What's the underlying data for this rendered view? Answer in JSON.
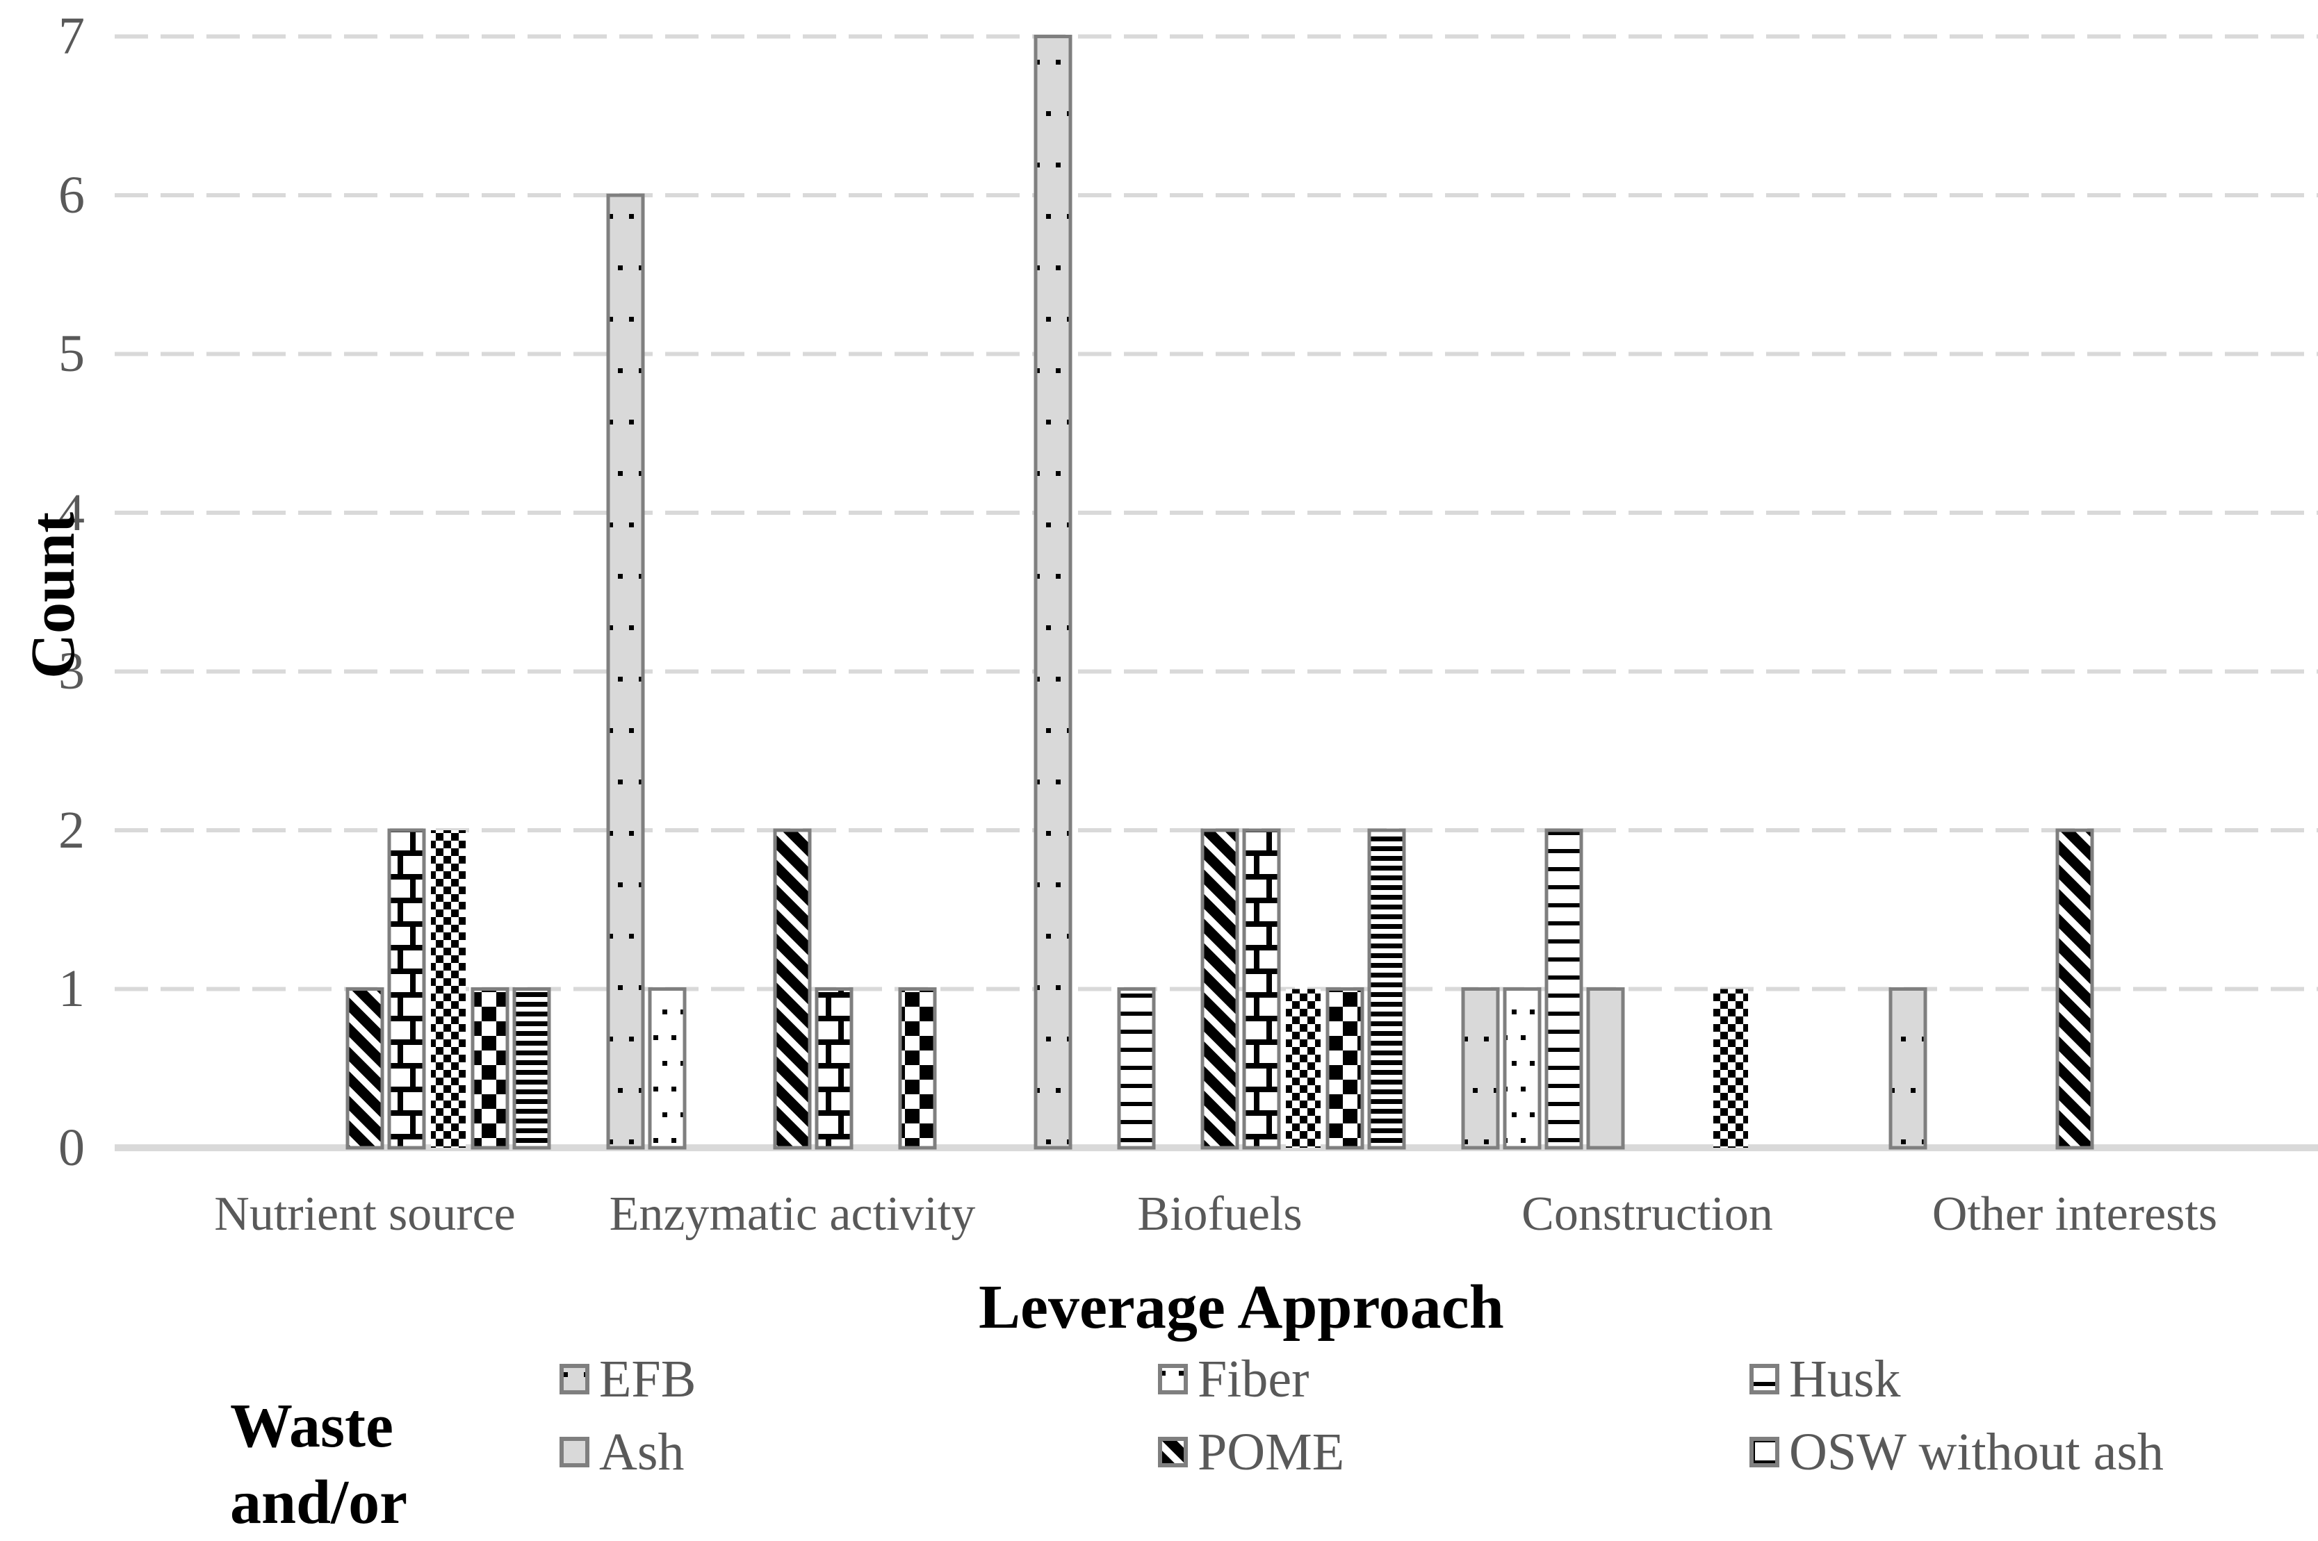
{
  "axes": {
    "y_title": "Count",
    "x_title": "Leverage Approach",
    "yticks": [
      "0",
      "1",
      "2",
      "3",
      "4",
      "5",
      "6",
      "7"
    ]
  },
  "chart_data": {
    "type": "bar",
    "title": "",
    "categories": [
      "Nutrient source",
      "Enzymatic activity",
      "Biofuels",
      "Construction",
      "Other interests"
    ],
    "xlabel": "Leverage Approach",
    "ylabel": "Count",
    "ylim": [
      0,
      7
    ],
    "grid": "horizontal-dashed",
    "legend_position": "bottom",
    "series": [
      {
        "name": "EFB",
        "pattern": "efb",
        "values": [
          0,
          6,
          7,
          1,
          1
        ]
      },
      {
        "name": "Fiber",
        "pattern": "fiber",
        "values": [
          0,
          1,
          0,
          1,
          0
        ]
      },
      {
        "name": "Husk",
        "pattern": "husk",
        "values": [
          0,
          0,
          1,
          2,
          0
        ]
      },
      {
        "name": "Ash",
        "pattern": "ash",
        "values": [
          0,
          0,
          0,
          1,
          0
        ]
      },
      {
        "name": "POME",
        "pattern": "pome",
        "values": [
          1,
          2,
          2,
          0,
          2
        ]
      },
      {
        "name": "OSW without ash",
        "pattern": "osw",
        "values": [
          2,
          1,
          2,
          0,
          0
        ]
      },
      {
        "name": "",
        "pattern": "checker-small",
        "values": [
          2,
          0,
          1,
          1,
          0
        ]
      },
      {
        "name": "",
        "pattern": "checker-large",
        "values": [
          1,
          1,
          1,
          0,
          0
        ]
      },
      {
        "name": "",
        "pattern": "hstripe",
        "values": [
          1,
          0,
          2,
          0,
          0
        ]
      }
    ]
  },
  "legend": {
    "title_line1": "Waste",
    "title_line2": "and/or",
    "items": [
      {
        "label": "EFB",
        "pattern": "efb"
      },
      {
        "label": "Fiber",
        "pattern": "fiber"
      },
      {
        "label": "Husk",
        "pattern": "husk"
      },
      {
        "label": "Ash",
        "pattern": "ash"
      },
      {
        "label": "POME",
        "pattern": "pome"
      },
      {
        "label": "OSW without ash",
        "pattern": "osw"
      }
    ]
  },
  "colors": {
    "bar_outline": "#7f7f7f",
    "bar_gray_fill": "#d9d9d9",
    "pattern_ink": "#000000",
    "gridline": "#d9d9d9",
    "tick_text": "#595959",
    "title_text": "#000000",
    "background": "#ffffff"
  }
}
